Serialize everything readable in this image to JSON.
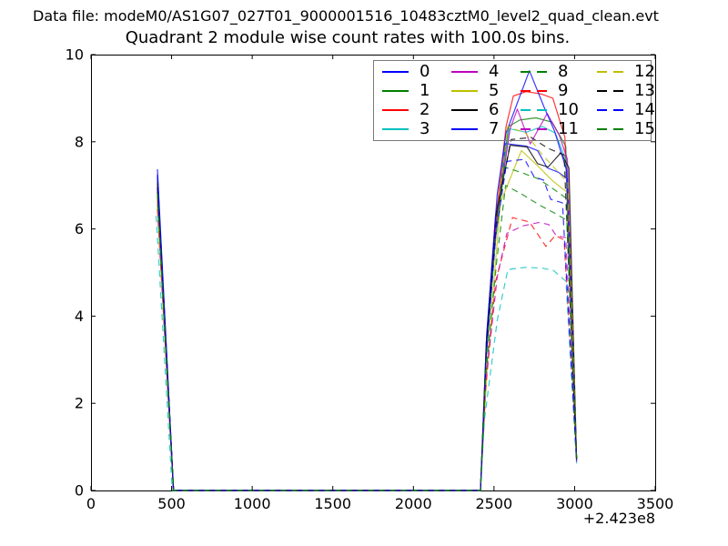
{
  "figure": {
    "header": "Data file: modeM0/AS1G07_027T01_9000001516_10483cztM0_level2_quad_clean.evt",
    "title": "Quadrant 2 module wise count rates with 100.0s bins."
  },
  "chart_data": {
    "type": "line",
    "title": "Quadrant 2 module wise count rates with 100.0s bins.",
    "xlabel": "",
    "ylabel": "",
    "grid": false,
    "x_axis": {
      "lim": [
        0,
        3500
      ],
      "ticks": [
        0,
        500,
        1000,
        1500,
        2000,
        2500,
        3000,
        3500
      ],
      "offset_label": "+2.423e8"
    },
    "y_axis": {
      "lim": [
        0,
        10
      ],
      "ticks": [
        0,
        2,
        4,
        6,
        8,
        10
      ]
    },
    "legend": {
      "columns": 4,
      "rows": 4,
      "order": "column-major",
      "position": "upper right",
      "entries": [
        "0",
        "1",
        "2",
        "3",
        "4",
        "5",
        "6",
        "7",
        "8",
        "9",
        "10",
        "11",
        "12",
        "13",
        "14",
        "15"
      ]
    },
    "series": [
      {
        "name": "0",
        "color": "#0000ff",
        "linestyle": "solid",
        "points": [
          [
            412,
            7.25
          ],
          [
            512,
            0
          ],
          [
            2416,
            0
          ],
          [
            2450,
            3.0
          ],
          [
            2500,
            5.5
          ],
          [
            2570,
            7.96
          ],
          [
            2700,
            7.9
          ],
          [
            2770,
            7.8
          ],
          [
            2830,
            7.4
          ],
          [
            2900,
            7.3
          ],
          [
            2955,
            7.15
          ],
          [
            3012,
            0.72
          ]
        ]
      },
      {
        "name": "1",
        "color": "#008000",
        "linestyle": "solid",
        "points": [
          [
            412,
            7.1
          ],
          [
            512,
            0
          ],
          [
            2416,
            0
          ],
          [
            2452,
            3.2
          ],
          [
            2510,
            6.0
          ],
          [
            2590,
            8.35
          ],
          [
            2660,
            8.5
          ],
          [
            2760,
            8.55
          ],
          [
            2860,
            8.45
          ],
          [
            2945,
            7.9
          ],
          [
            3012,
            0.73
          ]
        ]
      },
      {
        "name": "2",
        "color": "#ff0000",
        "linestyle": "solid",
        "points": [
          [
            412,
            6.95
          ],
          [
            512,
            0
          ],
          [
            2416,
            0
          ],
          [
            2455,
            3.5
          ],
          [
            2520,
            6.5
          ],
          [
            2575,
            8.35
          ],
          [
            2620,
            9.05
          ],
          [
            2700,
            9.15
          ],
          [
            2790,
            9.1
          ],
          [
            2865,
            9.0
          ],
          [
            2940,
            8.1
          ],
          [
            3012,
            0.73
          ]
        ]
      },
      {
        "name": "3",
        "color": "#00bfbf",
        "linestyle": "solid",
        "points": [
          [
            412,
            6.55
          ],
          [
            512,
            0
          ],
          [
            2416,
            0
          ],
          [
            2450,
            3.0
          ],
          [
            2515,
            6.0
          ],
          [
            2595,
            8.3
          ],
          [
            2700,
            8.22
          ],
          [
            2800,
            8.35
          ],
          [
            2880,
            8.2
          ],
          [
            2945,
            7.6
          ],
          [
            3012,
            0.72
          ]
        ]
      },
      {
        "name": "4",
        "color": "#bf00bf",
        "linestyle": "solid",
        "points": [
          [
            412,
            6.75
          ],
          [
            512,
            0
          ],
          [
            2416,
            0
          ],
          [
            2452,
            3.2
          ],
          [
            2515,
            6.2
          ],
          [
            2600,
            8.3
          ],
          [
            2645,
            8.75
          ],
          [
            2725,
            7.95
          ],
          [
            2830,
            8.65
          ],
          [
            2905,
            8.15
          ],
          [
            2955,
            7.6
          ],
          [
            3012,
            0.72
          ]
        ]
      },
      {
        "name": "5",
        "color": "#bfbf00",
        "linestyle": "solid",
        "points": [
          [
            412,
            6.6
          ],
          [
            512,
            0
          ],
          [
            2416,
            0
          ],
          [
            2460,
            3.0
          ],
          [
            2540,
            6.6
          ],
          [
            2670,
            7.8
          ],
          [
            2770,
            7.45
          ],
          [
            2865,
            7.1
          ],
          [
            2950,
            6.85
          ],
          [
            3012,
            0.7
          ]
        ]
      },
      {
        "name": "6",
        "color": "#000000",
        "linestyle": "solid",
        "points": [
          [
            412,
            7.05
          ],
          [
            512,
            0
          ],
          [
            2416,
            0
          ],
          [
            2452,
            3.4
          ],
          [
            2510,
            6.3
          ],
          [
            2600,
            7.92
          ],
          [
            2705,
            7.88
          ],
          [
            2770,
            7.5
          ],
          [
            2835,
            7.42
          ],
          [
            2915,
            7.75
          ],
          [
            2965,
            7.4
          ],
          [
            3012,
            0.72
          ]
        ]
      },
      {
        "name": "7",
        "color": "#0000ff",
        "linestyle": "solid",
        "points": [
          [
            412,
            7.37
          ],
          [
            512,
            0
          ],
          [
            2416,
            0
          ],
          [
            2455,
            3.6
          ],
          [
            2520,
            6.8
          ],
          [
            2575,
            8.2
          ],
          [
            2720,
            9.63
          ],
          [
            2810,
            8.8
          ],
          [
            2875,
            8.25
          ],
          [
            2950,
            7.35
          ],
          [
            3012,
            0.72
          ]
        ]
      },
      {
        "name": "8",
        "color": "#008000",
        "linestyle": "dashed",
        "points": [
          [
            412,
            6.85
          ],
          [
            512,
            0
          ],
          [
            2416,
            0
          ],
          [
            2448,
            2.8
          ],
          [
            2505,
            5.6
          ],
          [
            2565,
            7.42
          ],
          [
            2665,
            7.3
          ],
          [
            2775,
            7.15
          ],
          [
            2875,
            6.9
          ],
          [
            2950,
            6.7
          ],
          [
            3012,
            0.7
          ]
        ]
      },
      {
        "name": "9",
        "color": "#ff0000",
        "linestyle": "dashed",
        "points": [
          [
            412,
            6.45
          ],
          [
            512,
            0
          ],
          [
            2416,
            0
          ],
          [
            2445,
            2.2
          ],
          [
            2510,
            4.8
          ],
          [
            2615,
            6.26
          ],
          [
            2720,
            6.16
          ],
          [
            2822,
            5.6
          ],
          [
            2880,
            5.85
          ],
          [
            2935,
            5.75
          ],
          [
            3012,
            0.67
          ]
        ]
      },
      {
        "name": "10",
        "color": "#00bfbf",
        "linestyle": "dashed",
        "points": [
          [
            404,
            6.3
          ],
          [
            504,
            0
          ],
          [
            2416,
            0
          ],
          [
            2440,
            1.6
          ],
          [
            2520,
            3.9
          ],
          [
            2586,
            5.07
          ],
          [
            2700,
            5.12
          ],
          [
            2800,
            5.1
          ],
          [
            2868,
            5.05
          ],
          [
            2946,
            4.8
          ],
          [
            3012,
            0.62
          ]
        ]
      },
      {
        "name": "11",
        "color": "#bf00bf",
        "linestyle": "dashed",
        "points": [
          [
            412,
            6.65
          ],
          [
            512,
            0
          ],
          [
            2416,
            0
          ],
          [
            2446,
            2.4
          ],
          [
            2520,
            4.9
          ],
          [
            2580,
            5.9
          ],
          [
            2680,
            6.07
          ],
          [
            2780,
            6.15
          ],
          [
            2840,
            6.1
          ],
          [
            2885,
            5.85
          ],
          [
            2945,
            5.8
          ],
          [
            3012,
            0.66
          ]
        ]
      },
      {
        "name": "12",
        "color": "#bfbf00",
        "linestyle": "dashed",
        "points": [
          [
            412,
            6.7
          ],
          [
            512,
            0
          ],
          [
            2416,
            0
          ],
          [
            2455,
            3.3
          ],
          [
            2520,
            6.3
          ],
          [
            2585,
            8.35
          ],
          [
            2695,
            8.2
          ],
          [
            2800,
            7.7
          ],
          [
            2900,
            7.3
          ],
          [
            2958,
            7.05
          ],
          [
            3012,
            0.7
          ]
        ]
      },
      {
        "name": "13",
        "color": "#000000",
        "linestyle": "dashed",
        "points": [
          [
            412,
            6.95
          ],
          [
            512,
            0
          ],
          [
            2416,
            0
          ],
          [
            2455,
            3.4
          ],
          [
            2520,
            6.4
          ],
          [
            2605,
            8.05
          ],
          [
            2730,
            8.1
          ],
          [
            2835,
            7.85
          ],
          [
            2935,
            7.7
          ],
          [
            3012,
            0.72
          ]
        ]
      },
      {
        "name": "14",
        "color": "#0000ff",
        "linestyle": "dashed",
        "points": [
          [
            412,
            7.2
          ],
          [
            512,
            0
          ],
          [
            2416,
            0
          ],
          [
            2450,
            3.0
          ],
          [
            2512,
            5.9
          ],
          [
            2580,
            7.55
          ],
          [
            2690,
            7.6
          ],
          [
            2748,
            7.2
          ],
          [
            2808,
            7.12
          ],
          [
            2852,
            6.68
          ],
          [
            2925,
            6.6
          ],
          [
            3012,
            0.68
          ]
        ]
      },
      {
        "name": "15",
        "color": "#008000",
        "linestyle": "dashed",
        "points": [
          [
            412,
            6.8
          ],
          [
            512,
            0
          ],
          [
            2416,
            0
          ],
          [
            2448,
            2.6
          ],
          [
            2515,
            5.2
          ],
          [
            2572,
            7.0
          ],
          [
            2672,
            6.8
          ],
          [
            2782,
            6.55
          ],
          [
            2882,
            6.35
          ],
          [
            2952,
            6.2
          ],
          [
            3012,
            0.67
          ]
        ]
      }
    ]
  }
}
